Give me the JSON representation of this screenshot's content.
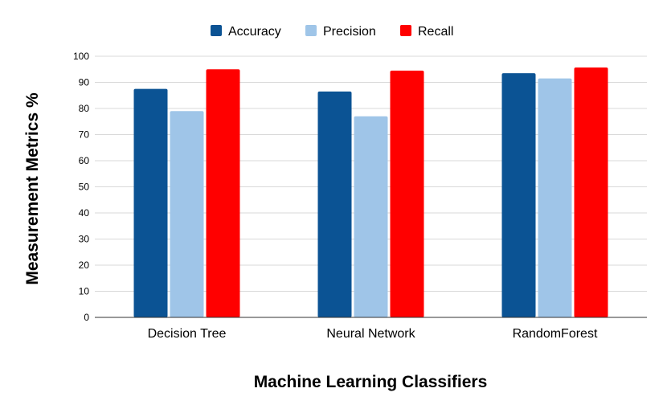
{
  "chart_data": {
    "type": "bar",
    "title": "",
    "xlabel": "Machine Learning Classifiers",
    "ylabel": "Measurement Metrics %",
    "categories": [
      "Decision Tree",
      "Neural Network",
      "RandomForest"
    ],
    "series": [
      {
        "name": "Accuracy",
        "color": "#0b5394",
        "values": [
          87.5,
          86.5,
          93.5
        ]
      },
      {
        "name": "Precision",
        "color": "#9fc5e8",
        "values": [
          79,
          77,
          91.5
        ]
      },
      {
        "name": "Recall",
        "color": "#ff0000",
        "values": [
          95,
          94.5,
          95.7
        ]
      }
    ],
    "ylim": [
      0,
      100
    ],
    "yticks": [
      "0",
      "10",
      "20",
      "30",
      "40",
      "50",
      "60",
      "70",
      "80",
      "90",
      "100"
    ],
    "grid": true,
    "legend_position": "top"
  }
}
